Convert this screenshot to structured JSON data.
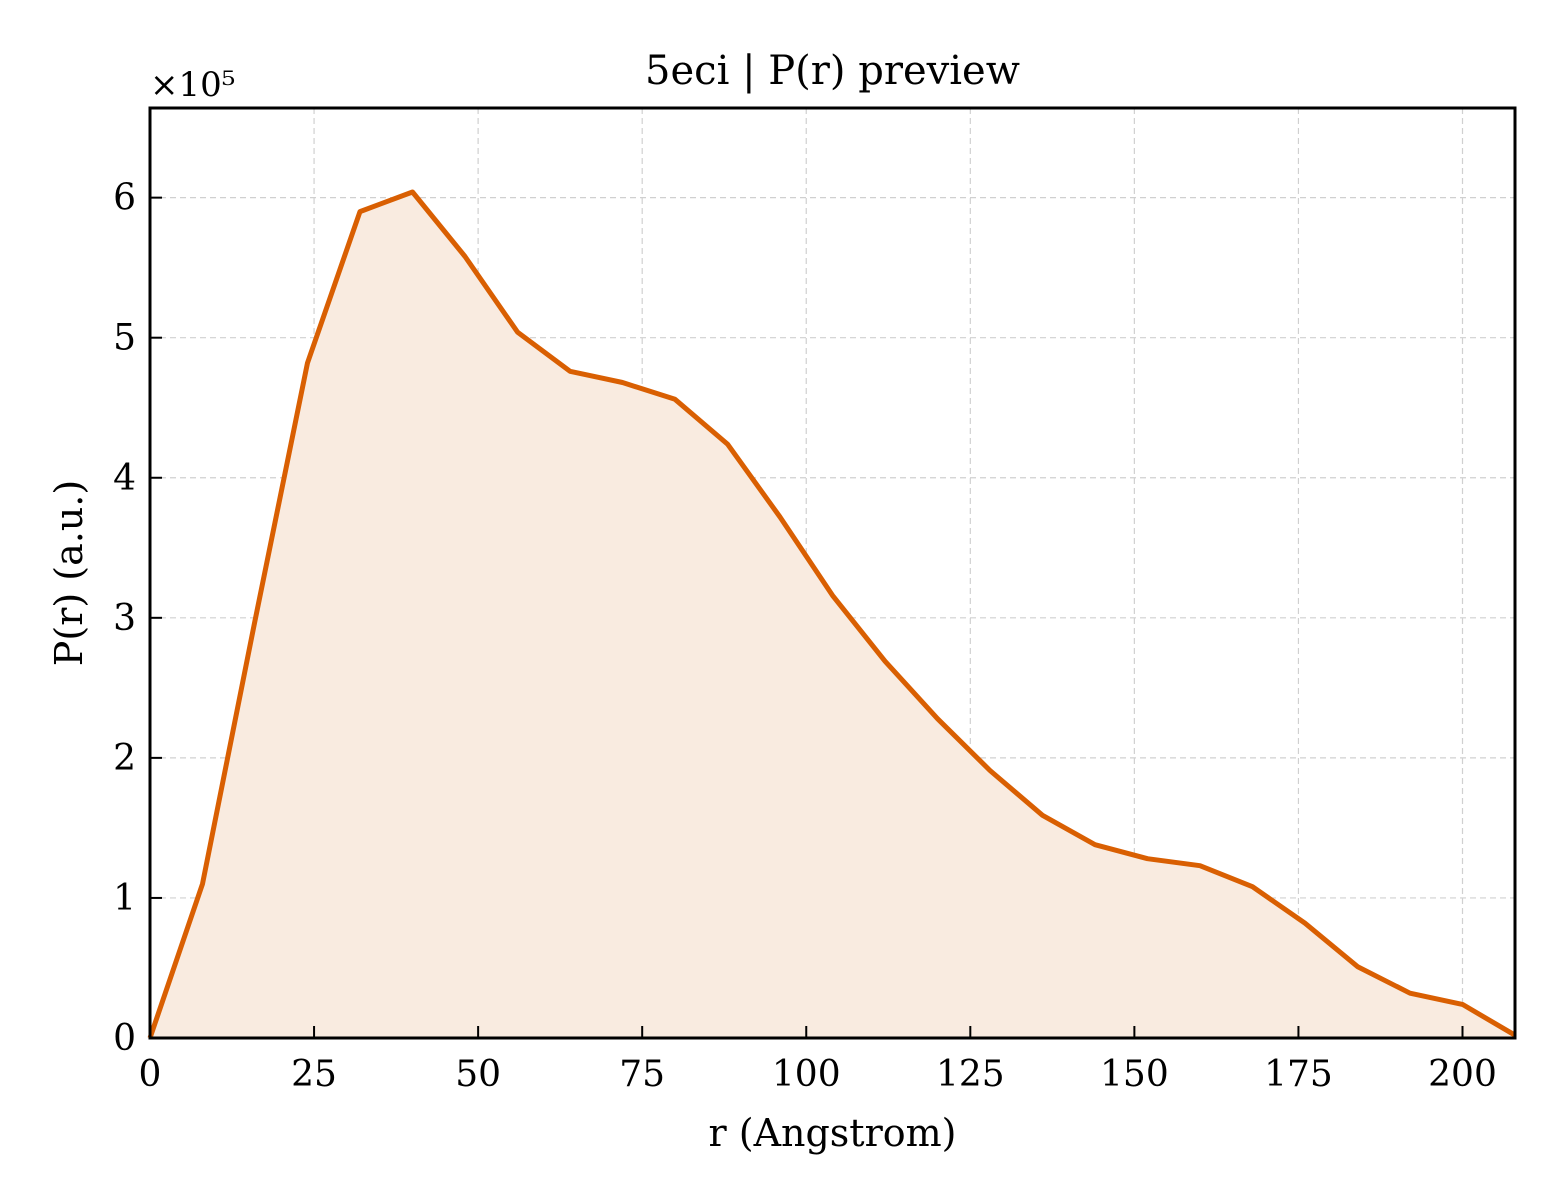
{
  "chart_data": {
    "type": "area",
    "title": "5eci | P(r) preview",
    "xlabel": "r (Angstrom)",
    "ylabel": "P(r) (a.u.)",
    "y_offset_label": "×10⁵",
    "xlim": [
      0,
      208
    ],
    "ylim": [
      0,
      6.64
    ],
    "x_ticks": [
      0,
      25,
      50,
      75,
      100,
      125,
      150,
      175,
      200
    ],
    "y_ticks": [
      0,
      1,
      2,
      3,
      4,
      5,
      6
    ],
    "grid": true,
    "line_color": "#d95f02",
    "fill_color": "#f9ebe0",
    "series": [
      {
        "x": [
          0,
          8,
          16,
          24,
          32,
          40,
          48,
          56,
          64,
          72,
          80,
          88,
          96,
          104,
          112,
          120,
          128,
          136,
          144,
          152,
          160,
          168,
          176,
          184,
          192,
          200,
          208
        ],
        "values": [
          0.0,
          1.1,
          2.98,
          4.82,
          5.9,
          6.04,
          5.58,
          5.04,
          4.76,
          4.68,
          4.56,
          4.24,
          3.72,
          3.16,
          2.69,
          2.28,
          1.91,
          1.59,
          1.38,
          1.28,
          1.23,
          1.08,
          0.82,
          0.51,
          0.32,
          0.24,
          0.02
        ]
      }
    ]
  }
}
